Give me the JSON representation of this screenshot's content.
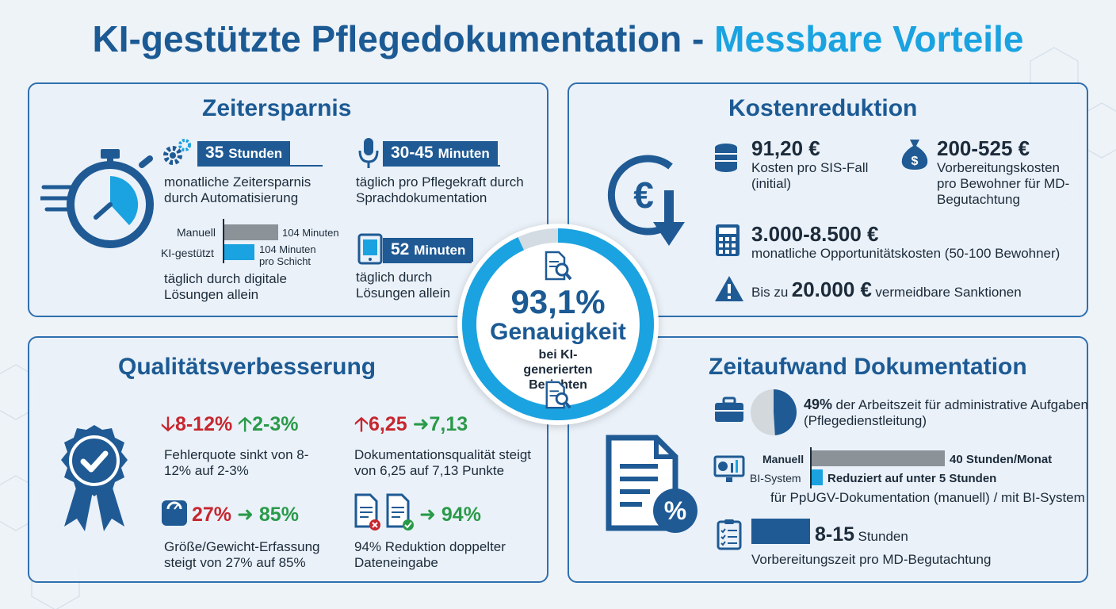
{
  "title": {
    "part1": "KI-gestützte Pflegedokumentation - ",
    "part2": "Messbare Vorteile"
  },
  "colors": {
    "primary": "#1c5a94",
    "accent": "#1aa3e0",
    "red": "#c6262e",
    "green": "#2a9a49",
    "gray": "#8b9298"
  },
  "center": {
    "value": "93,1%",
    "label": "Genauigkeit",
    "subtitle": "bei KI-generierten Berichten",
    "accuracy_fraction": 0.931
  },
  "zeitersparnis": {
    "title": "Zeitersparnis",
    "stat1": {
      "value": "35",
      "unit": "Stunden",
      "desc": "monatliche Zeitersparnis durch Automatisierung"
    },
    "stat2": {
      "value": "30-45",
      "unit": "Minuten",
      "desc": "täglich pro Pflegekraft durch Sprachdokumentation"
    },
    "stat3": {
      "value": "52",
      "unit": "Minuten",
      "desc": "täglich durch Lösungen allein"
    },
    "comparison": {
      "manual_label": "Manuell",
      "manual_value": "104 Minuten",
      "ki_label": "KI-gestützt",
      "ki_value": "104 Minuten pro Schicht",
      "desc": "täglich durch digitale Lösungen allein"
    }
  },
  "kostenreduktion": {
    "title": "Kostenreduktion",
    "stat1": {
      "value": "91,20 €",
      "desc": "Kosten pro SIS-Fall (initial)"
    },
    "stat2": {
      "value": "200-525 €",
      "desc": "Vorbereitungskosten pro Bewohner für MD-Begutachtung"
    },
    "stat3": {
      "value": "3.000-8.500 €",
      "desc": "monatliche Opportunitätskosten (50-100 Bewohner)"
    },
    "stat4": {
      "prefix": "Bis zu",
      "value": "20.000 €",
      "suffix": "vermeidbare Sanktionen"
    }
  },
  "qualitaet": {
    "title": "Qualitätsverbesserung",
    "stat1": {
      "from": "8-12%",
      "to": "2-3%",
      "desc": "Fehlerquote sinkt von 8-12% auf 2-3%"
    },
    "stat2": {
      "from": "6,25",
      "to": "7,13",
      "desc": "Dokumentationsqualität steigt von 6,25 auf 7,13 Punkte"
    },
    "stat3": {
      "from": "27%",
      "to": "85%",
      "desc": "Größe/Gewicht-Erfassung steigt von 27% auf 85%"
    },
    "stat4": {
      "to": "94%",
      "desc": "94% Reduktion doppelter Dateneingabe"
    }
  },
  "zeitaufwand": {
    "title": "Zeitaufwand Dokumentation",
    "stat1": {
      "value": "49%",
      "desc": "der Arbeitszeit für administrative Aufgaben (Pflegedienstleitung)",
      "fraction": 0.49
    },
    "comparison": {
      "manual_label": "Manuell",
      "manual_value": "40 Stunden/Monat",
      "bi_label": "BI-System",
      "bi_value": "Reduziert auf unter 5 Stunden",
      "desc": "für PpUGV-Dokumentation (manuell) / mit BI-System"
    },
    "stat3": {
      "value": "8-15",
      "unit": "Stunden",
      "desc": "Vorbereitungszeit pro MD-Begutachtung"
    }
  }
}
